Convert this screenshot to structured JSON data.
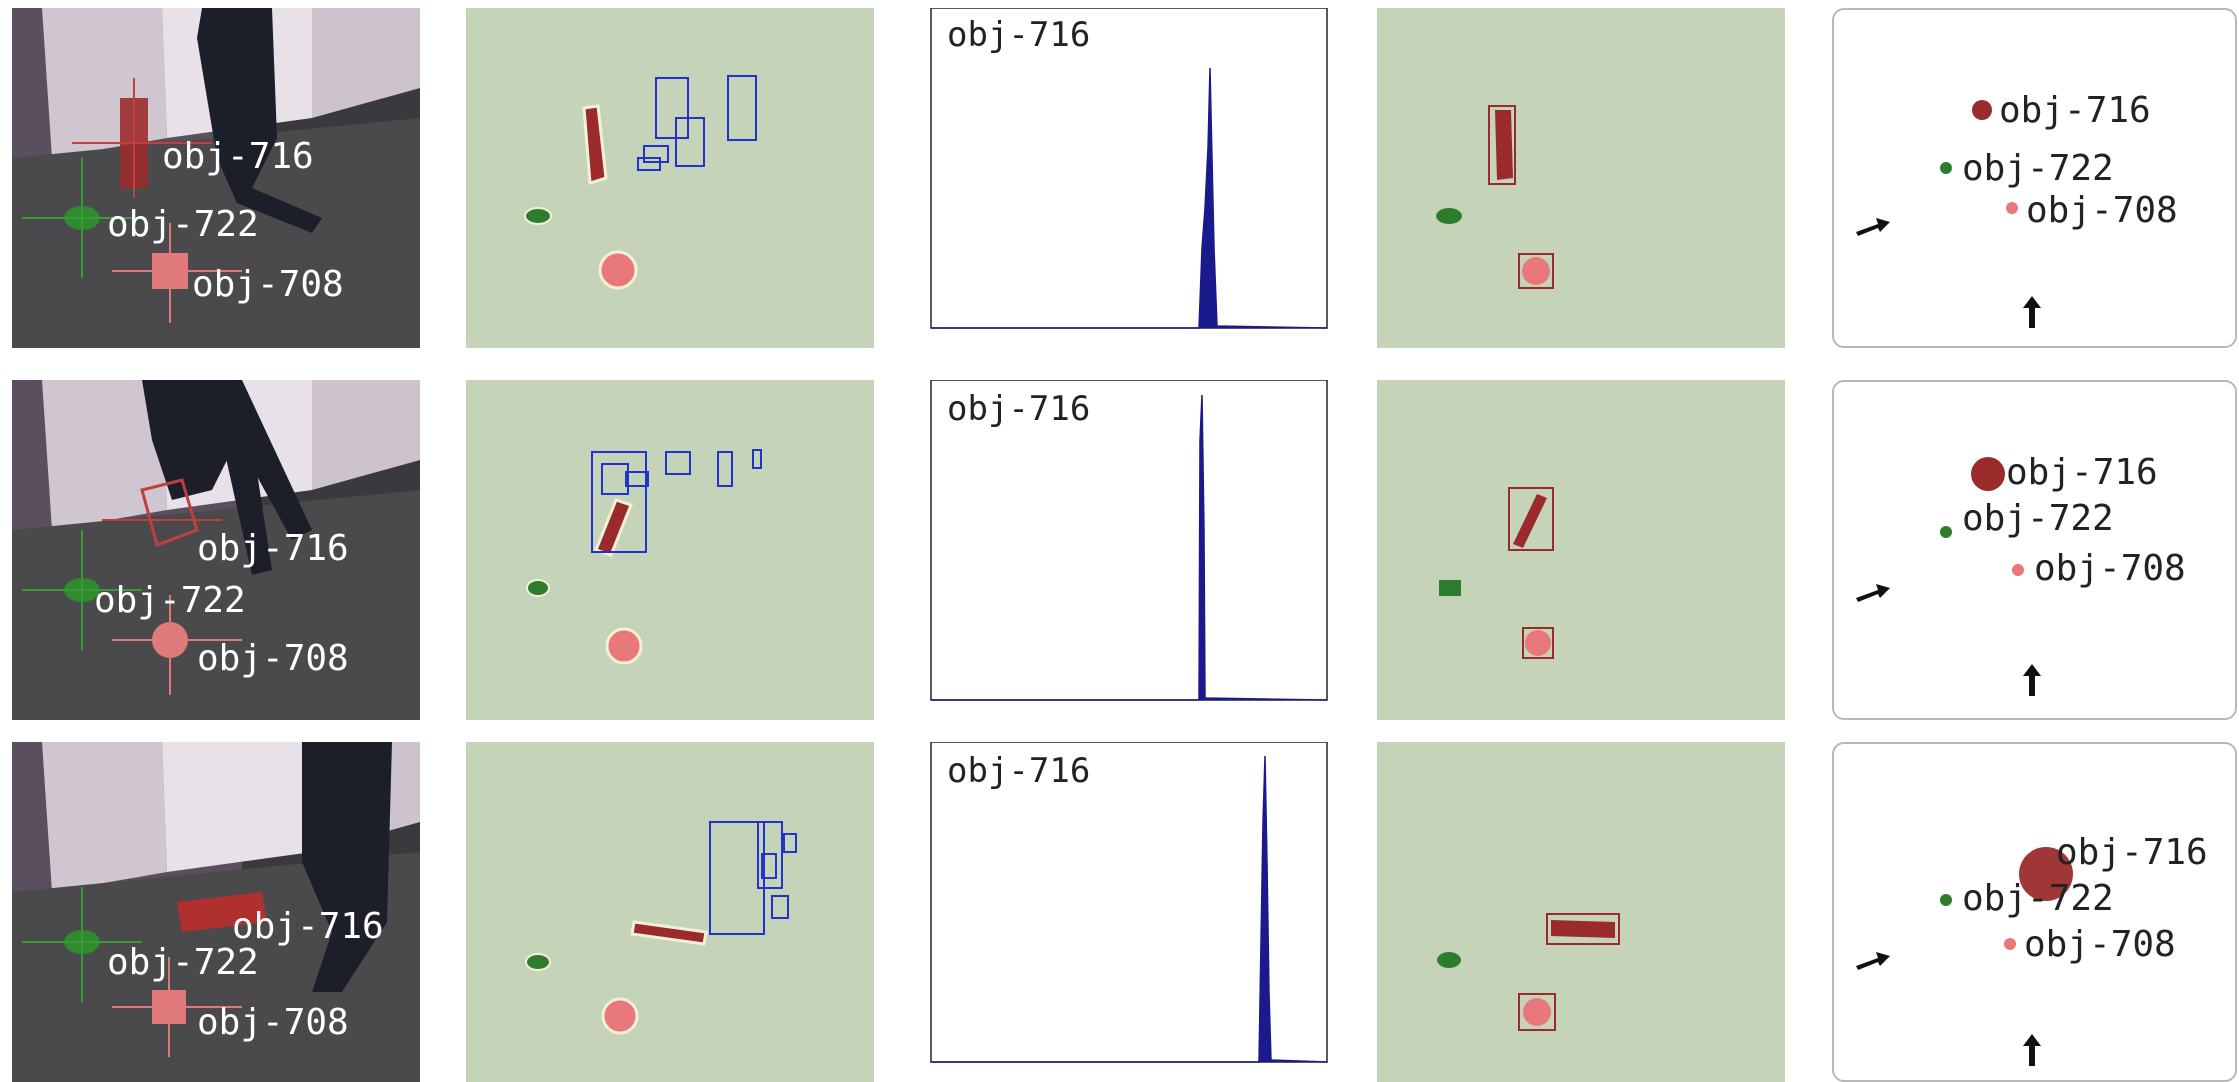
{
  "rows": [
    {
      "camera": {
        "labels": {
          "obj716": "obj-716",
          "obj722": "obj-722",
          "obj708": "obj-708"
        }
      },
      "histogram": {
        "title": "obj-716"
      },
      "map": {
        "labels": {
          "obj716": "obj-716",
          "obj722": "obj-722",
          "obj708": "obj-708"
        }
      }
    },
    {
      "camera": {
        "labels": {
          "obj716": "obj-716",
          "obj722": "obj-722",
          "obj708": "obj-708"
        }
      },
      "histogram": {
        "title": "obj-716"
      },
      "map": {
        "labels": {
          "obj716": "obj-716",
          "obj722": "obj-722",
          "obj708": "obj-708"
        }
      }
    },
    {
      "camera": {
        "labels": {
          "obj716": "obj-716",
          "obj722": "obj-722",
          "obj708": "obj-708"
        }
      },
      "histogram": {
        "title": "obj-716"
      },
      "map": {
        "labels": {
          "obj716": "obj-716",
          "obj722": "obj-722",
          "obj708": "obj-708"
        }
      }
    }
  ],
  "colors": {
    "obj716": "#9b2b2b",
    "obj722": "#2e7d2e",
    "obj708": "#e8787a",
    "segmentation_background": "#c5d4b8",
    "detection_box": "#2233cc",
    "histogram_bar": "#1a1a8c"
  }
}
